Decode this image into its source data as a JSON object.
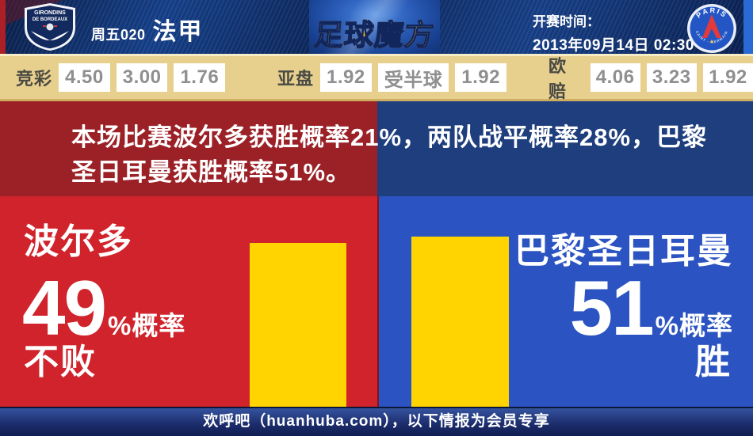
{
  "header": {
    "match_code": "周五020",
    "league": "法甲",
    "brand_logo": "足球魔方",
    "kickoff_label": "开赛时间：",
    "kickoff_datetime": "2013年09月14日 02:30",
    "home_team_crest": "Girondins de Bordeaux",
    "home_crest_text_top": "GIRONDINS",
    "home_crest_text_bottom": "DE BORDEAUX",
    "away_team_crest": "Paris Saint-Germain",
    "away_crest_text_top": "PARIS",
    "away_crest_text_bottom": "SAINT - GERMAIN"
  },
  "odds_bar": {
    "groups": [
      {
        "label": "竞彩",
        "values": [
          "4.50",
          "3.00",
          "1.76"
        ]
      },
      {
        "label": "亚盘",
        "values": [
          "1.92",
          "受半球",
          "1.92"
        ]
      },
      {
        "label": "欧赔",
        "values": [
          "4.06",
          "3.23",
          "1.92"
        ]
      }
    ]
  },
  "prediction_banner": {
    "line1": "本场比赛波尔多获胜概率21%，两队战平概率28%，巴黎",
    "line2": "圣日耳曼获胜概率51%。"
  },
  "chart_data": {
    "type": "bar",
    "categories": [
      "波尔多 不败",
      "巴黎圣日耳曼 胜"
    ],
    "values": [
      49,
      51
    ],
    "unit": "%概率",
    "bar_color": "#ffd400",
    "home_win_prob": 21,
    "draw_prob": 28,
    "away_win_prob": 51,
    "title": "本场比赛波尔多获胜概率21%，两队战平概率28%，巴黎圣日耳曼获胜概率51%。"
  },
  "home_panel": {
    "team": "波尔多",
    "percent": "49",
    "percent_suffix": "%概率",
    "outcome": "不败",
    "bg_color": "#d0232b"
  },
  "away_panel": {
    "team": "巴黎圣日耳曼",
    "percent": "51",
    "percent_suffix": "%概率",
    "outcome": "胜",
    "bg_color": "#2b54c2"
  },
  "footer": {
    "text": "欢呼吧（huanhuba.com），以下情报为会员专享"
  }
}
